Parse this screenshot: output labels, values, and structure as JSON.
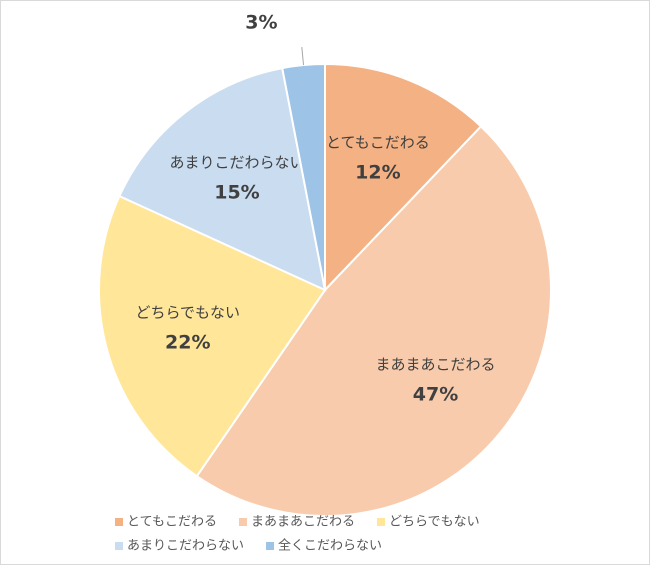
{
  "chart_data": {
    "type": "pie",
    "categories": [
      "とてもこだわる",
      "まあまあこだわる",
      "どちらでもない",
      "あまりこだわらない",
      "全くこだわらない"
    ],
    "values": [
      12,
      47,
      22,
      15,
      3
    ],
    "value_labels": [
      "12%",
      "47%",
      "22%",
      "15%",
      "3%"
    ],
    "colors": [
      "#f4b183",
      "#f8cbad",
      "#ffe699",
      "#c9dcf0",
      "#9dc3e6"
    ],
    "legend": "bottom"
  }
}
